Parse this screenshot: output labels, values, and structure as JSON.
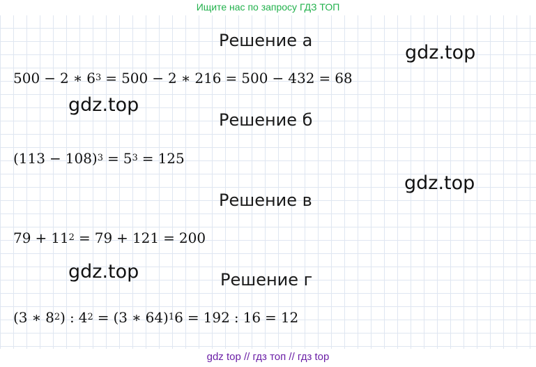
{
  "banner_top": "Ищите нас по запросу ГДЗ ТОП",
  "watermark": "gdz.top",
  "solutions": [
    {
      "title": "Решение а",
      "parts": [
        {
          "t": "500"
        },
        {
          "o": "−"
        },
        {
          "t": "2"
        },
        {
          "o": "∗"
        },
        {
          "t": "6"
        },
        {
          "s": "3"
        },
        {
          "o": "="
        },
        {
          "t": "500"
        },
        {
          "o": "−"
        },
        {
          "t": "2"
        },
        {
          "o": "∗"
        },
        {
          "t": "216"
        },
        {
          "o": "="
        },
        {
          "t": "500"
        },
        {
          "o": "−"
        },
        {
          "t": "432"
        },
        {
          "o": "="
        },
        {
          "t": "68"
        }
      ]
    },
    {
      "title": "Решение б",
      "parts": [
        {
          "t": "(113"
        },
        {
          "o": "−"
        },
        {
          "t": "108)"
        },
        {
          "s": "3"
        },
        {
          "o": "="
        },
        {
          "t": "5"
        },
        {
          "s": "3"
        },
        {
          "o": "="
        },
        {
          "t": "125"
        }
      ]
    },
    {
      "title": "Решение в",
      "parts": [
        {
          "t": "79"
        },
        {
          "o": "+"
        },
        {
          "t": "11"
        },
        {
          "s": "2"
        },
        {
          "o": "="
        },
        {
          "t": "79"
        },
        {
          "o": "+"
        },
        {
          "t": "121"
        },
        {
          "o": "="
        },
        {
          "t": "200"
        }
      ]
    },
    {
      "title": "Решение г",
      "parts": [
        {
          "t": "(3"
        },
        {
          "o": "∗"
        },
        {
          "t": "8"
        },
        {
          "s": "2"
        },
        {
          "t": ")"
        },
        {
          "o": ":"
        },
        {
          "t": "4"
        },
        {
          "s": "2"
        },
        {
          "o": "="
        },
        {
          "t": "(3"
        },
        {
          "o": "∗"
        },
        {
          "t": "64)"
        },
        {
          "s": "1"
        },
        {
          "t": "6"
        },
        {
          "o": "="
        },
        {
          "t": "192"
        },
        {
          "o": ":"
        },
        {
          "t": "16"
        },
        {
          "o": "="
        },
        {
          "t": "12"
        }
      ]
    }
  ],
  "banner_bottom": "gdz top  //  гдз топ  //  гдз top"
}
